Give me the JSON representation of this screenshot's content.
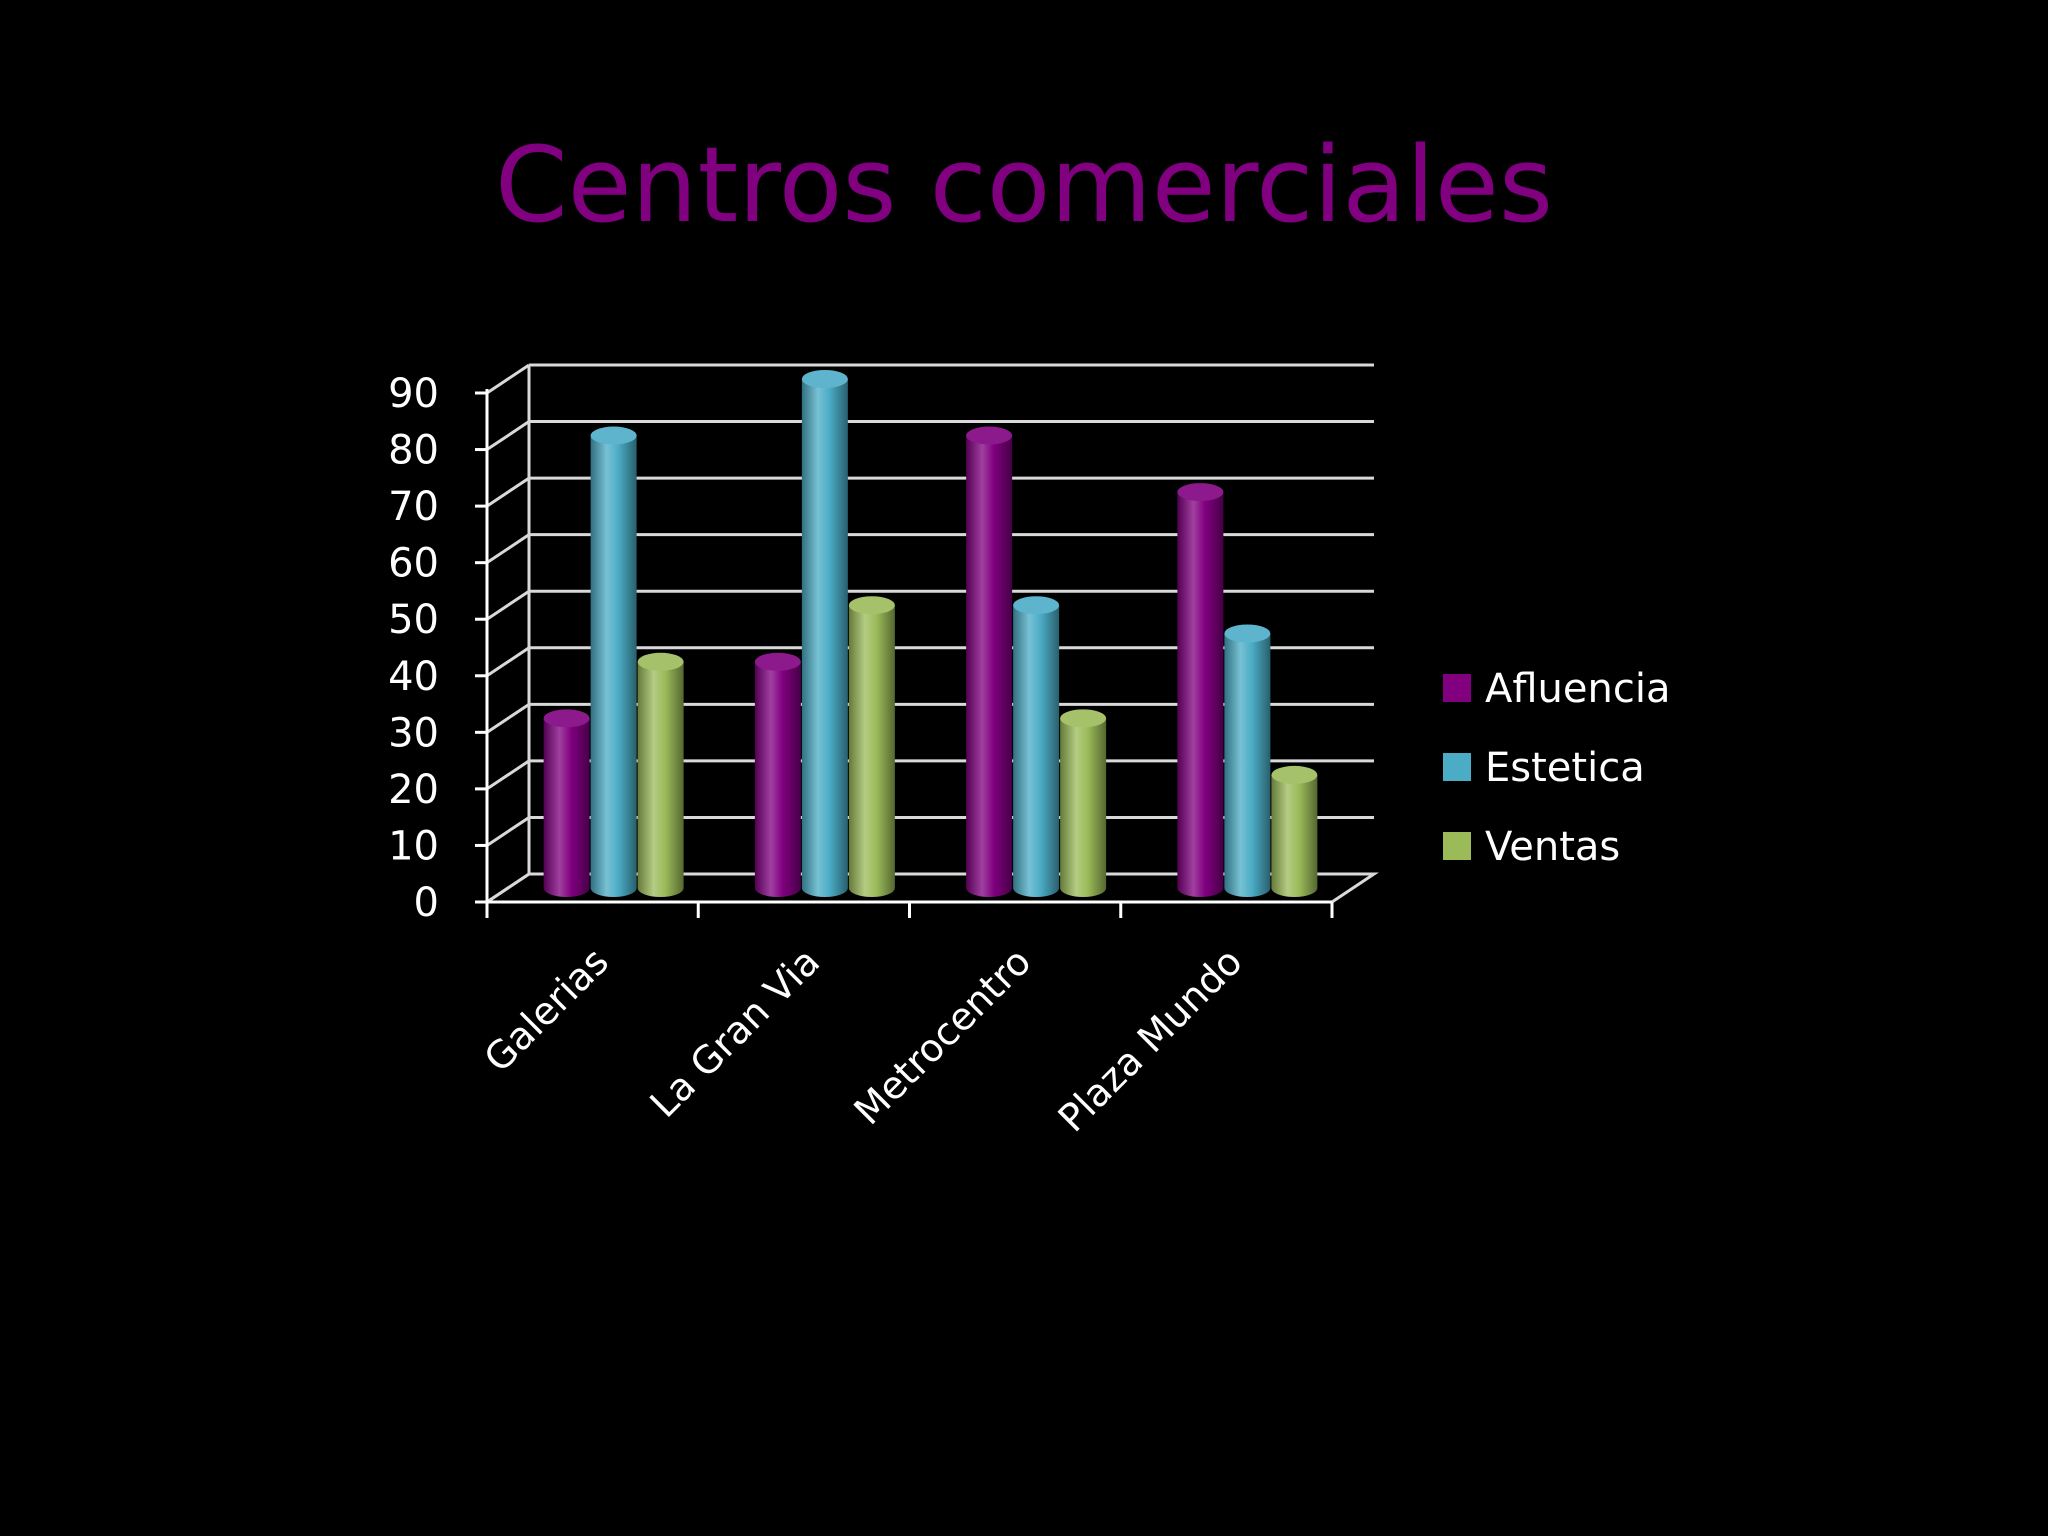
{
  "chart_data": {
    "type": "bar",
    "title": "Centros comerciales",
    "categories": [
      "Galerias",
      "La Gran Via",
      "Metrocentro",
      "Plaza Mundo"
    ],
    "series": [
      {
        "name": "Afluencia",
        "values": [
          30,
          40,
          80,
          70
        ],
        "color": "#800080"
      },
      {
        "name": "Estetica",
        "values": [
          80,
          90,
          50,
          45
        ],
        "color": "#4bacc6"
      },
      {
        "name": "Ventas",
        "values": [
          40,
          50,
          30,
          20
        ],
        "color": "#9bbb59"
      }
    ],
    "ylim": [
      0,
      90
    ],
    "yticks": [
      0,
      10,
      20,
      30,
      40,
      50,
      60,
      70,
      80,
      90
    ],
    "grid": true,
    "legend_position": "right",
    "style": "3d-cylinder"
  }
}
